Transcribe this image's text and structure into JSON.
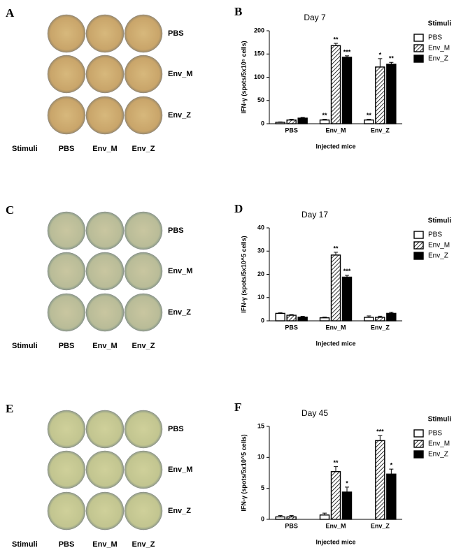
{
  "panels": [
    {
      "letter": "A",
      "row_labels": [
        "PBS",
        "Env_M",
        "Env_Z"
      ],
      "stimuli_label": "Stimuli",
      "col_labels": [
        "PBS",
        "Env_M",
        "Env_Z"
      ]
    },
    {
      "letter": "C",
      "row_labels": [
        "PBS",
        "Env_M",
        "Env_Z"
      ],
      "stimuli_label": "Stimuli",
      "col_labels": [
        "PBS",
        "Env_M",
        "Env_Z"
      ]
    },
    {
      "letter": "E",
      "row_labels": [
        "PBS",
        "Env_M",
        "Env_Z"
      ],
      "stimuli_label": "Stimuli",
      "col_labels": [
        "PBS",
        "Env_M",
        "Env_Z"
      ]
    }
  ],
  "chart_data": [
    {
      "type": "bar",
      "letter": "B",
      "title": "Day 7",
      "ylabel": "IFN-γ (spots/5x10⁵ cells)",
      "xlabel": "Injected mice",
      "legend_title": "Stimuli",
      "categories": [
        "PBS",
        "Env_M",
        "Env_Z"
      ],
      "ylim": [
        0,
        200
      ],
      "yticks": [
        0,
        50,
        100,
        150,
        200
      ],
      "series": [
        {
          "name": "PBS",
          "color": "#ffffff",
          "values": [
            3,
            8,
            8
          ],
          "errors": [
            1,
            1.5,
            1.5
          ],
          "annotations": [
            null,
            "**",
            "**"
          ]
        },
        {
          "name": "Env_M",
          "color": "#ffffff",
          "hatch": true,
          "values": [
            8,
            168,
            122
          ],
          "errors": [
            1.5,
            5,
            18
          ],
          "annotations": [
            null,
            "**",
            "*"
          ]
        },
        {
          "name": "Env_Z",
          "color": "#000000",
          "values": [
            12,
            143,
            128
          ],
          "errors": [
            1.5,
            3,
            4
          ],
          "annotations": [
            null,
            "***",
            "**"
          ]
        }
      ]
    },
    {
      "type": "bar",
      "letter": "D",
      "title": "Day 17",
      "ylabel": "IFN-γ (spots/5x10^5 cells)",
      "xlabel": "Injected mice",
      "legend_title": "Stimuli",
      "categories": [
        "PBS",
        "Env_M",
        "Env_Z"
      ],
      "ylim": [
        0,
        40
      ],
      "yticks": [
        0,
        10,
        20,
        30,
        40
      ],
      "series": [
        {
          "name": "PBS",
          "color": "#ffffff",
          "values": [
            3.2,
            1.3,
            1.5
          ],
          "errors": [
            0.3,
            0.3,
            0.6
          ],
          "annotations": [
            null,
            null,
            null
          ]
        },
        {
          "name": "Env_M",
          "color": "#ffffff",
          "hatch": true,
          "values": [
            2.4,
            28.3,
            1.5
          ],
          "errors": [
            0.3,
            1.2,
            0.5
          ],
          "annotations": [
            null,
            "**",
            null
          ]
        },
        {
          "name": "Env_Z",
          "color": "#000000",
          "values": [
            1.6,
            18.8,
            3.2
          ],
          "errors": [
            0.3,
            0.8,
            0.5
          ],
          "annotations": [
            null,
            "***",
            null
          ]
        }
      ]
    },
    {
      "type": "bar",
      "letter": "F",
      "title": "Day 45",
      "ylabel": "IFN-γ (spots/5x10^5 cells)",
      "xlabel": "Injected mice",
      "legend_title": "Stimuli",
      "categories": [
        "PBS",
        "Env_M",
        "Env_Z"
      ],
      "ylim": [
        0,
        15
      ],
      "yticks": [
        0,
        5,
        10,
        15
      ],
      "series": [
        {
          "name": "PBS",
          "color": "#ffffff",
          "values": [
            0.4,
            0.7,
            0
          ],
          "errors": [
            0.2,
            0.3,
            0
          ],
          "annotations": [
            null,
            null,
            null
          ]
        },
        {
          "name": "Env_M",
          "color": "#ffffff",
          "hatch": true,
          "values": [
            0.4,
            7.7,
            12.7
          ],
          "errors": [
            0.2,
            0.8,
            0.8
          ],
          "annotations": [
            null,
            "**",
            "***"
          ]
        },
        {
          "name": "Env_Z",
          "color": "#000000",
          "values": [
            0,
            4.4,
            7.3
          ],
          "errors": [
            0,
            0.8,
            0.8
          ],
          "annotations": [
            null,
            "*",
            "*"
          ]
        }
      ]
    }
  ]
}
